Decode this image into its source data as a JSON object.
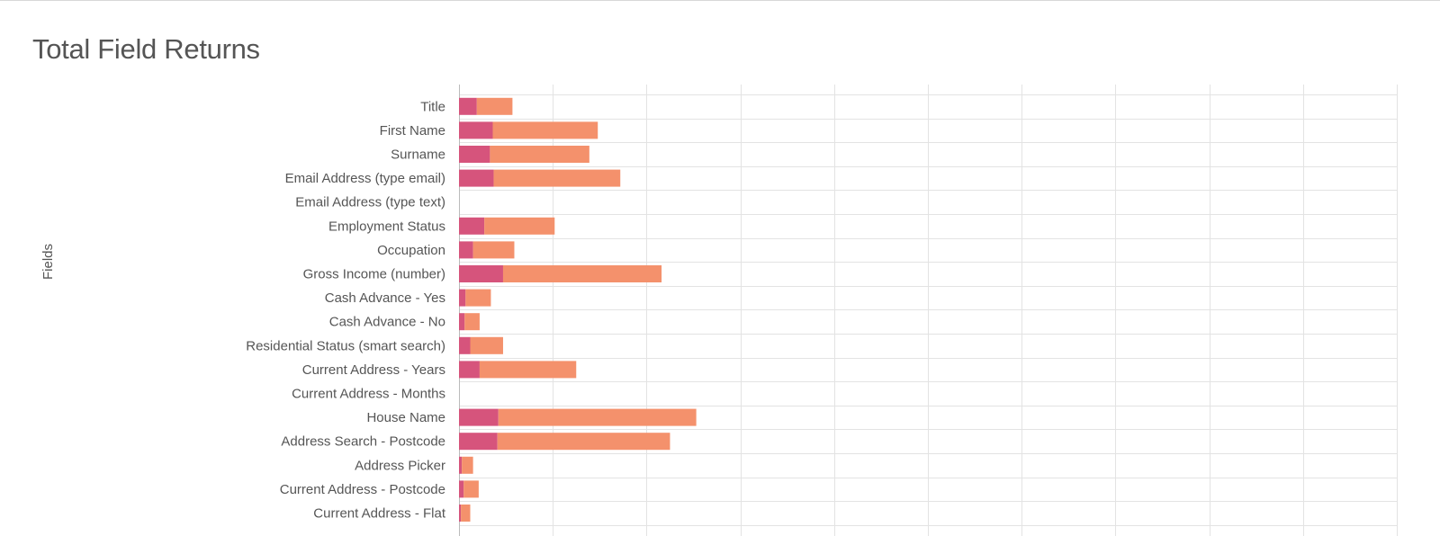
{
  "chart_data": {
    "type": "bar",
    "stacked": true,
    "orientation": "horizontal",
    "title": "Total Field Returns",
    "ylabel": "Fields",
    "xlabel": "",
    "xlim": [
      0,
      1000
    ],
    "x_gridlines": [
      0,
      100,
      200,
      300,
      400,
      500,
      600,
      700,
      800,
      900,
      1000
    ],
    "categories": [
      "Title",
      "First Name",
      "Surname",
      "Email Address (type email)",
      "Email Address (type text)",
      "Employment Status",
      "Occupation",
      "Gross Income (number)",
      "Cash Advance - Yes",
      "Cash Advance - No",
      "Residential Status (smart search)",
      "Current Address - Years",
      "Current Address - Months",
      "House Name",
      "Address Search - Postcode",
      "Address Picker",
      "Current Address -  Postcode",
      "Current Address - Flat"
    ],
    "series": [
      {
        "color": "#d6547c",
        "values": [
          19,
          36,
          33,
          37,
          0,
          27,
          15,
          47,
          7,
          6,
          12,
          22,
          0,
          42,
          41,
          3,
          5,
          2
        ]
      },
      {
        "color": "#f4916c",
        "values": [
          38,
          112,
          106,
          135,
          0,
          75,
          44,
          169,
          27,
          16,
          35,
          103,
          0,
          211,
          184,
          12,
          16,
          10
        ]
      }
    ],
    "grid": true,
    "legend": "none"
  }
}
